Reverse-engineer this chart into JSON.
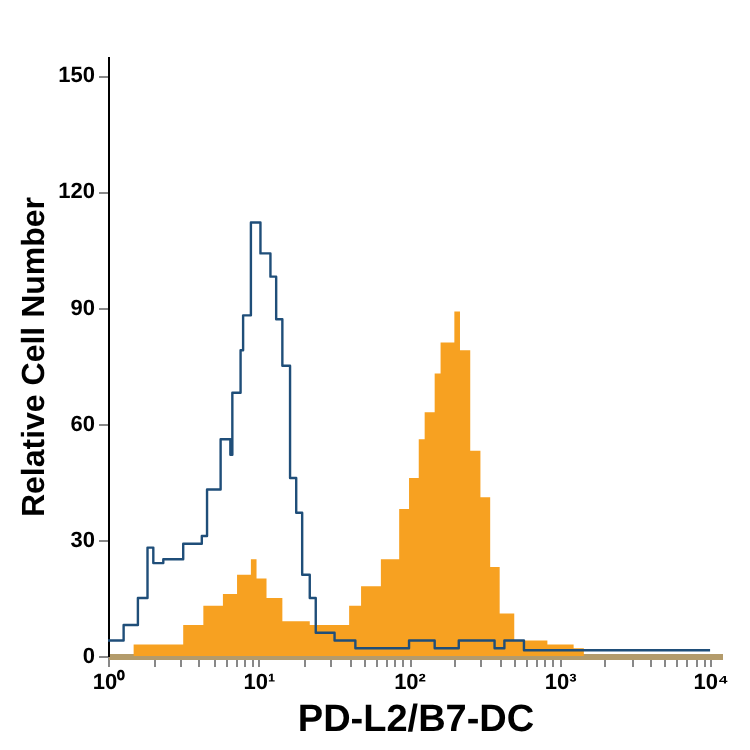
{
  "chart_data": {
    "type": "area",
    "xlabel": "PD-L2/B7-DC",
    "ylabel": "Relative Cell Number",
    "log": "x",
    "grid": false,
    "xlim": [
      1,
      12000
    ],
    "ylim": [
      0,
      155
    ],
    "yticks": [
      0,
      30,
      60,
      90,
      120,
      150
    ],
    "xticks": [
      {
        "value": 1,
        "label": "10⁰"
      },
      {
        "value": 2,
        "label": null
      },
      {
        "value": 3,
        "label": null
      },
      {
        "value": 4,
        "label": null
      },
      {
        "value": 5,
        "label": null
      },
      {
        "value": 6,
        "label": null
      },
      {
        "value": 7,
        "label": null
      },
      {
        "value": 8,
        "label": null
      },
      {
        "value": 9,
        "label": null
      },
      {
        "value": 10,
        "label": "10¹"
      },
      {
        "value": 20,
        "label": null
      },
      {
        "value": 30,
        "label": null
      },
      {
        "value": 40,
        "label": null
      },
      {
        "value": 50,
        "label": null
      },
      {
        "value": 60,
        "label": null
      },
      {
        "value": 70,
        "label": null
      },
      {
        "value": 80,
        "label": null
      },
      {
        "value": 90,
        "label": null
      },
      {
        "value": 100,
        "label": "10²"
      },
      {
        "value": 200,
        "label": null
      },
      {
        "value": 300,
        "label": null
      },
      {
        "value": 400,
        "label": null
      },
      {
        "value": 500,
        "label": null
      },
      {
        "value": 600,
        "label": null
      },
      {
        "value": 700,
        "label": null
      },
      {
        "value": 800,
        "label": null
      },
      {
        "value": 900,
        "label": null
      },
      {
        "value": 1000,
        "label": "10³"
      },
      {
        "value": 2000,
        "label": null
      },
      {
        "value": 3000,
        "label": null
      },
      {
        "value": 4000,
        "label": null
      },
      {
        "value": 5000,
        "label": null
      },
      {
        "value": 6000,
        "label": null
      },
      {
        "value": 7000,
        "label": null
      },
      {
        "value": 8000,
        "label": null
      },
      {
        "value": 9000,
        "label": null
      },
      {
        "value": 10000,
        "label": "10⁴"
      }
    ],
    "series": [
      {
        "color": "#f7a121",
        "x": [
          1.27,
          1.48,
          1.83,
          2.33,
          3.16,
          4.3,
          5.8,
          7.2,
          8.9,
          9.7,
          11.3,
          14.4,
          21.9,
          29.7,
          40,
          48,
          65,
          86,
          100,
          116,
          127,
          148,
          162,
          200,
          218,
          255,
          298,
          346,
          400,
          500,
          830,
          1240,
          1450,
          12000
        ],
        "values": [
          0,
          3,
          3,
          3,
          8,
          13,
          16,
          21,
          25,
          20,
          15,
          9,
          8,
          8,
          13,
          18,
          25,
          38,
          46,
          56,
          63,
          73,
          81,
          89,
          79,
          53,
          41,
          23,
          11,
          4,
          3,
          2,
          0,
          0
        ]
      },
      {
        "type": "step",
        "color": "#1f4e79",
        "x": [
          1,
          1.27,
          1.58,
          1.83,
          2.0,
          2.33,
          3.16,
          4.2,
          4.55,
          5.6,
          6.5,
          6.7,
          7.6,
          7.9,
          8.9,
          9.7,
          10.3,
          12,
          13.1,
          14.4,
          16.2,
          17.8,
          19.5,
          21.9,
          24,
          32,
          44,
          100,
          148,
          214,
          370,
          430,
          580,
          10000
        ],
        "values": [
          4,
          8,
          15,
          28,
          24,
          25,
          29,
          31,
          43,
          56,
          52,
          68,
          79,
          88,
          112,
          112,
          104,
          98,
          87,
          75,
          46,
          37,
          21,
          15,
          6,
          4,
          2,
          4,
          2,
          4,
          2,
          4,
          1.5,
          1.5
        ]
      }
    ]
  }
}
